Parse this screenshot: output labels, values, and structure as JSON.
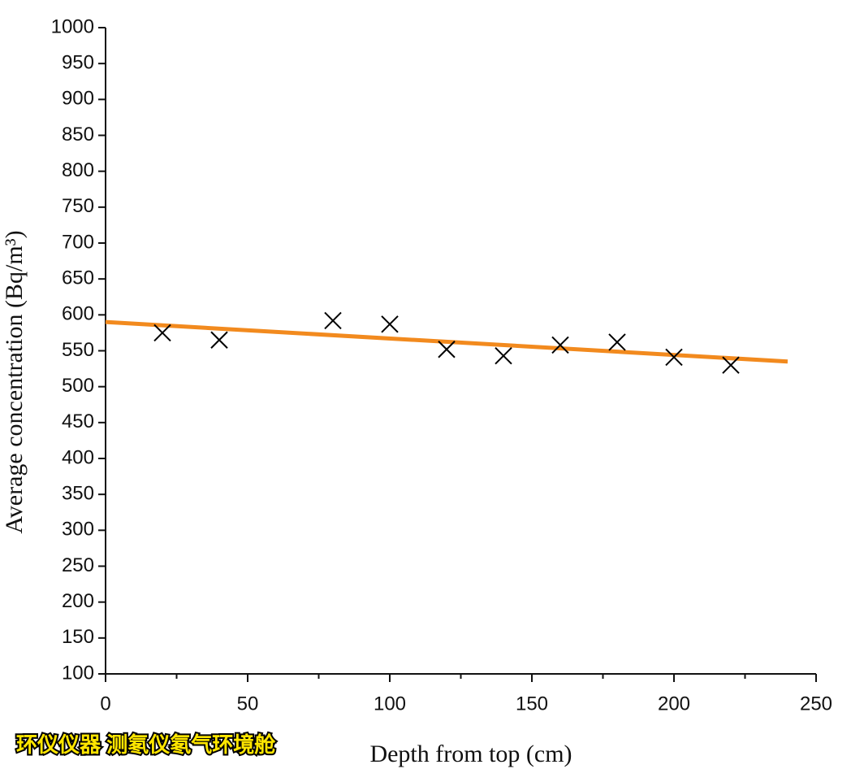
{
  "chart_data": {
    "type": "scatter",
    "xlabel": "Depth  from top (cm)",
    "ylabel": "Average concentration (Bq/m³)",
    "watermark": "环仪仪器 测氡仪氡气环境舱",
    "xlim": [
      0,
      250
    ],
    "xticks": [
      0,
      50,
      100,
      150,
      200,
      250
    ],
    "xminorticks": [
      25,
      75,
      125,
      175,
      225
    ],
    "ylim": [
      100,
      1000
    ],
    "yticks": [
      100,
      150,
      200,
      250,
      300,
      350,
      400,
      450,
      500,
      550,
      600,
      650,
      700,
      750,
      800,
      850,
      900,
      950,
      1000
    ],
    "grid": false,
    "series": [
      {
        "color": "#000000",
        "marker": "x",
        "x": [
          20,
          40,
          80,
          100,
          120,
          140,
          160,
          180,
          200,
          220
        ],
        "values": [
          575,
          565,
          592,
          587,
          552,
          543,
          558,
          562,
          541,
          530
        ]
      }
    ],
    "fit_line": {
      "color": "#f28a1e",
      "x": [
        0,
        240
      ],
      "values": [
        590,
        535
      ]
    }
  }
}
